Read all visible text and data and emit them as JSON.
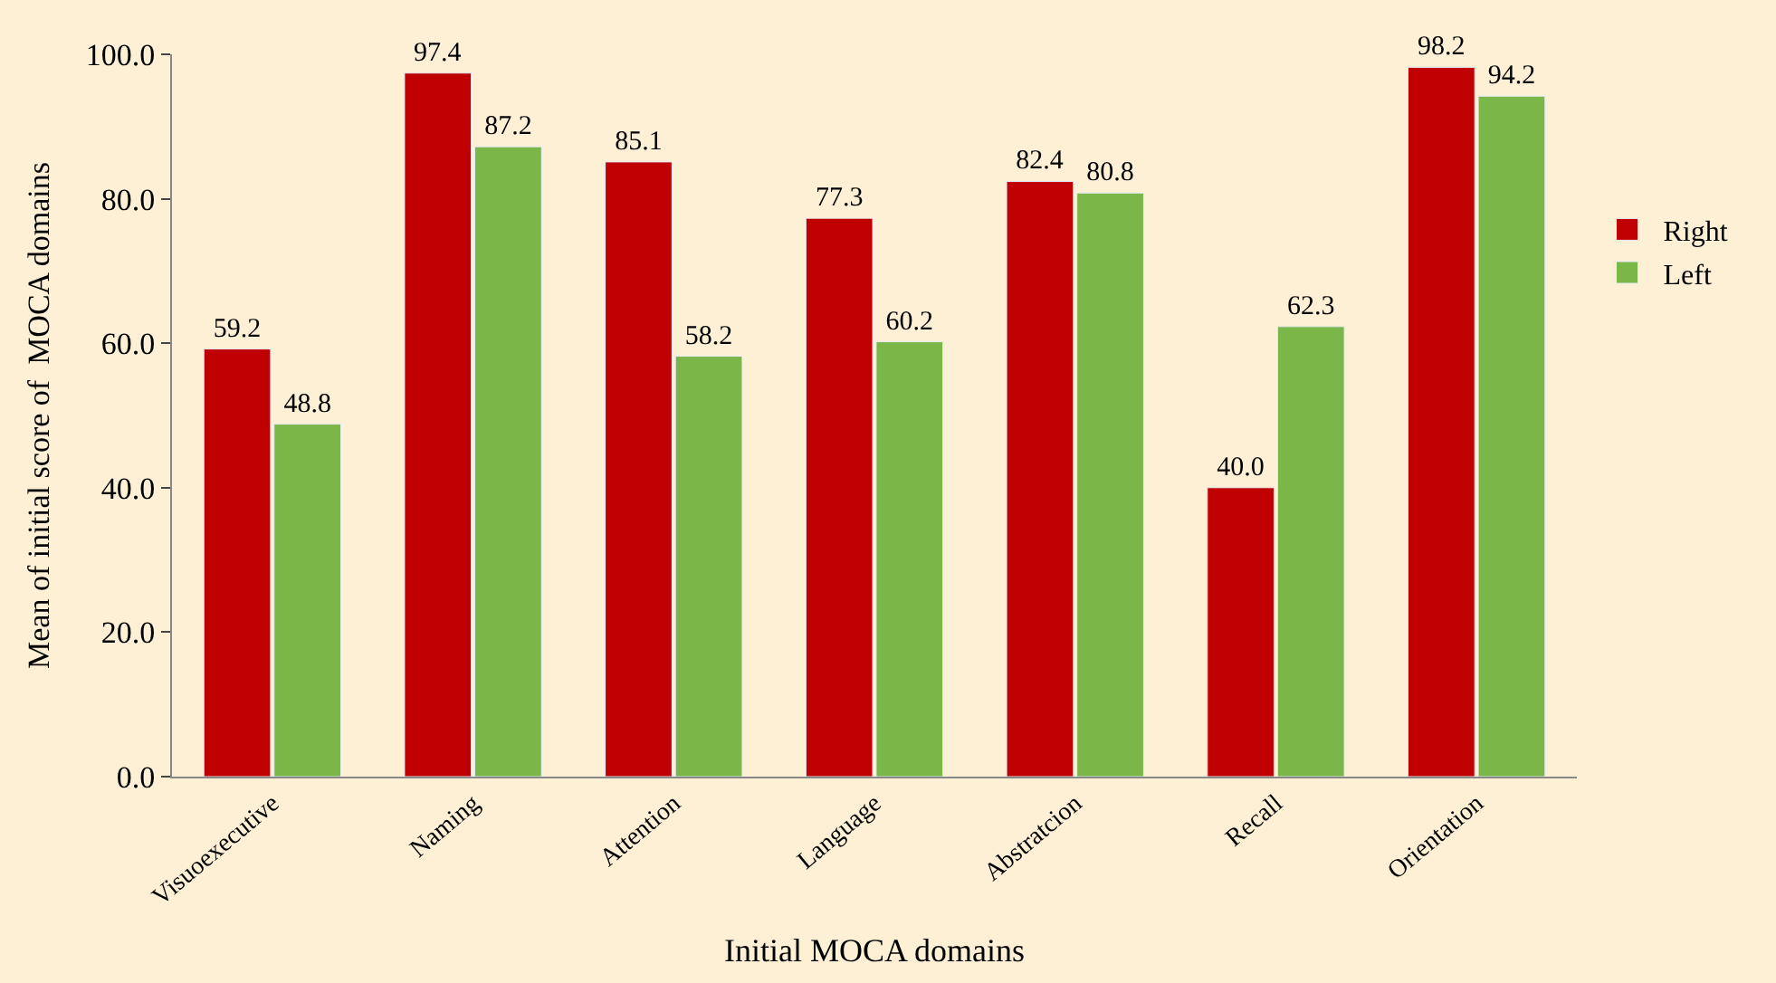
{
  "chart_data": {
    "type": "bar",
    "xlabel": "Initial MOCA domains",
    "ylabel": "Mean of initial score of  MOCA domains",
    "categories": [
      "Visuoexecutive",
      "Naming",
      "Attention",
      "Language",
      "Abstratcion",
      "Recall",
      "Orientation"
    ],
    "series": [
      {
        "name": "Right",
        "color": "#c00000",
        "values": [
          59.2,
          97.4,
          85.1,
          77.3,
          82.4,
          40.0,
          98.2
        ]
      },
      {
        "name": "Left",
        "color": "#7ab648",
        "values": [
          48.8,
          87.2,
          58.2,
          60.2,
          80.8,
          62.3,
          94.2
        ]
      }
    ],
    "value_labels": [
      [
        "59.2",
        "97.4",
        "85.1",
        "77.3",
        "82.4",
        "40.0",
        "98.2"
      ],
      [
        "48.8",
        "87.2",
        "58.2",
        "60.2",
        "80.8",
        "62.3",
        "94.2"
      ]
    ],
    "ylim": [
      0,
      100
    ],
    "yticks": [
      {
        "value": 0,
        "label": "0.0"
      },
      {
        "value": 20,
        "label": "20.0"
      },
      {
        "value": 40,
        "label": "40.0"
      },
      {
        "value": 60,
        "label": "60.0"
      },
      {
        "value": 80,
        "label": "80.0"
      },
      {
        "value": 100,
        "label": "100.0"
      }
    ],
    "legend": "right",
    "grid": false
  }
}
